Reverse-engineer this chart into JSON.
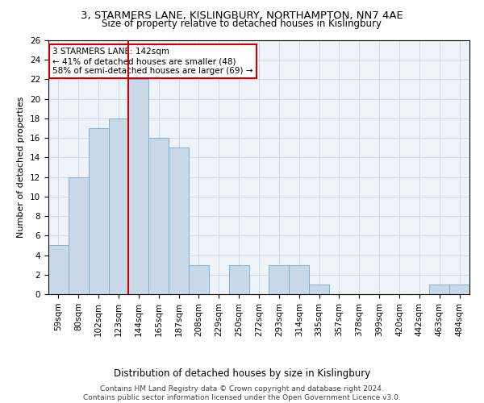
{
  "title": "3, STARMERS LANE, KISLINGBURY, NORTHAMPTON, NN7 4AE",
  "subtitle": "Size of property relative to detached houses in Kislingbury",
  "xlabel": "Distribution of detached houses by size in Kislingbury",
  "ylabel": "Number of detached properties",
  "bar_labels": [
    "59sqm",
    "80sqm",
    "102sqm",
    "123sqm",
    "144sqm",
    "165sqm",
    "187sqm",
    "208sqm",
    "229sqm",
    "250sqm",
    "272sqm",
    "293sqm",
    "314sqm",
    "335sqm",
    "357sqm",
    "378sqm",
    "399sqm",
    "420sqm",
    "442sqm",
    "463sqm",
    "484sqm"
  ],
  "bar_values": [
    5,
    12,
    17,
    18,
    22,
    16,
    15,
    3,
    0,
    3,
    0,
    3,
    3,
    1,
    0,
    0,
    0,
    0,
    0,
    1,
    1
  ],
  "bar_color": "#c9d9ea",
  "bar_edge_color": "#7aa8c8",
  "grid_color": "#ccd8e8",
  "background_color": "#eef2f9",
  "vline_x_index": 4,
  "vline_color": "#cc0000",
  "annotation_text": "3 STARMERS LANE: 142sqm\n← 41% of detached houses are smaller (48)\n58% of semi-detached houses are larger (69) →",
  "annotation_box_color": "#ffffff",
  "annotation_box_edge": "#cc0000",
  "ylim": [
    0,
    26
  ],
  "yticks": [
    0,
    2,
    4,
    6,
    8,
    10,
    12,
    14,
    16,
    18,
    20,
    22,
    24,
    26
  ],
  "footer_line1": "Contains HM Land Registry data © Crown copyright and database right 2024.",
  "footer_line2": "Contains public sector information licensed under the Open Government Licence v3.0.",
  "title_fontsize": 9.5,
  "subtitle_fontsize": 8.5,
  "xlabel_fontsize": 8.5,
  "ylabel_fontsize": 8,
  "tick_fontsize": 7.5,
  "annotation_fontsize": 7.5,
  "footer_fontsize": 6.5
}
